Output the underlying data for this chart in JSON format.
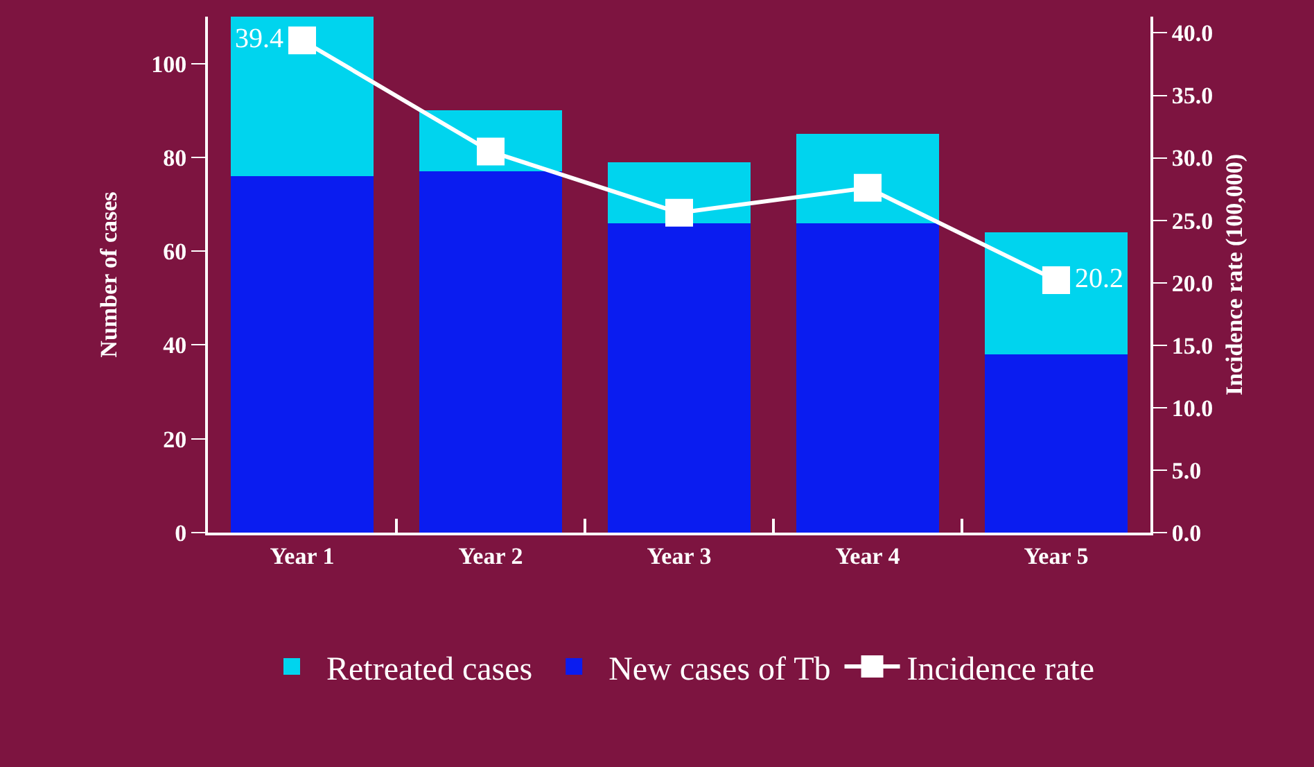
{
  "chart_data": {
    "type": "bar",
    "stacked": true,
    "categories": [
      "Year 1",
      "Year 2",
      "Year 3",
      "Year 4",
      "Year 5"
    ],
    "ylabel": "Number of cases",
    "y2label": "Incidence rate (100,000)",
    "ylim": [
      0,
      110
    ],
    "yticks": [
      0,
      20,
      40,
      60,
      80,
      100
    ],
    "y2lim": [
      0,
      41.3
    ],
    "y2ticks": [
      {
        "value": 0,
        "label": "0.0"
      },
      {
        "value": 5,
        "label": "5.0"
      },
      {
        "value": 10,
        "label": "10.0"
      },
      {
        "value": 15,
        "label": "15.0"
      },
      {
        "value": 20,
        "label": "20.0"
      },
      {
        "value": 25,
        "label": "25.0"
      },
      {
        "value": 30,
        "label": "30.0"
      },
      {
        "value": 35,
        "label": "35.0"
      },
      {
        "value": 40,
        "label": "40.0"
      }
    ],
    "legend": "bottom",
    "series": [
      {
        "name": "New cases of Tb",
        "color": "#0a1cf0",
        "values": [
          76,
          77,
          66,
          66,
          38
        ]
      },
      {
        "name": "Retreated cases",
        "color": "#00d4ee",
        "values": [
          34,
          13,
          13,
          19,
          26
        ]
      },
      {
        "name": "Incidence rate",
        "type": "line",
        "axis": "y2",
        "color": "#ffffff",
        "marker": "square",
        "values": [
          39.4,
          30.5,
          25.6,
          27.6,
          20.2
        ],
        "value_labels": [
          "39.4",
          null,
          null,
          null,
          "20.2"
        ]
      }
    ]
  }
}
